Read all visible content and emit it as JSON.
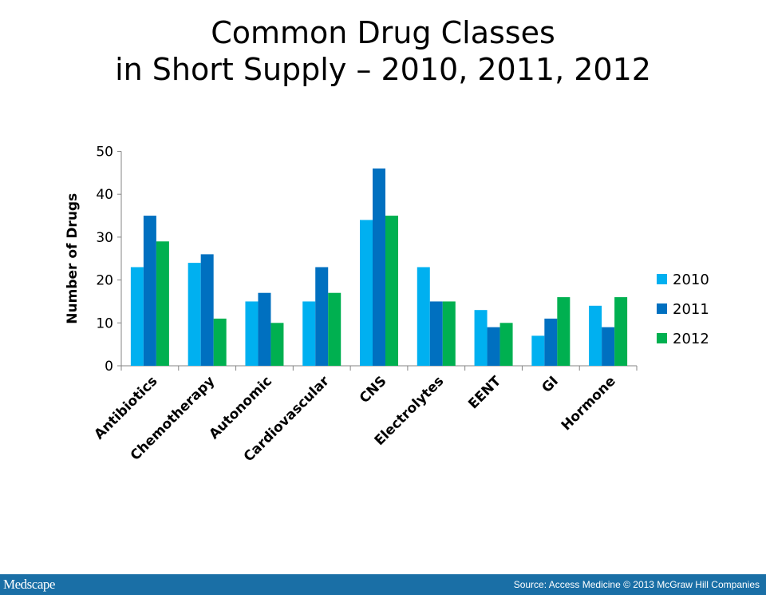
{
  "chart_data": {
    "type": "bar",
    "title_lines": [
      "Common Drug Classes",
      "in Short Supply – 2010, 2011, 2012"
    ],
    "xlabel": "",
    "ylabel": "Number of Drugs",
    "ylim": [
      0,
      50
    ],
    "yticks": [
      0,
      10,
      20,
      30,
      40,
      50
    ],
    "grid": false,
    "legend_position": "right",
    "categories": [
      "Antibiotics",
      "Chemotherapy",
      "Autonomic",
      "Cardiovascular",
      "CNS",
      "Electrolytes",
      "EENT",
      "GI",
      "Hormone"
    ],
    "series": [
      {
        "name": "2010",
        "color": "#00b0f0",
        "values": [
          23,
          24,
          15,
          15,
          34,
          23,
          13,
          7,
          14
        ]
      },
      {
        "name": "2011",
        "color": "#0070c0",
        "values": [
          35,
          26,
          17,
          23,
          46,
          15,
          9,
          11,
          9
        ]
      },
      {
        "name": "2012",
        "color": "#00b050",
        "values": [
          29,
          11,
          10,
          17,
          35,
          15,
          10,
          16,
          16
        ]
      }
    ]
  },
  "footer": {
    "logo": "Medscape",
    "source": "Source: Access Medicine © 2013 McGraw Hill Companies",
    "background": "#1a6fa6"
  }
}
